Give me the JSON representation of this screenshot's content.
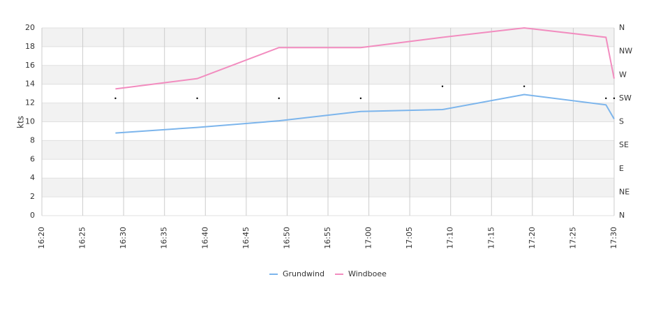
{
  "chart_data": {
    "type": "line",
    "y_label": "kts",
    "x": [
      "16:29",
      "16:39",
      "16:49",
      "16:59",
      "17:09",
      "17:19",
      "17:29",
      "17:30"
    ],
    "xlim": [
      "16:20",
      "17:30"
    ],
    "xticks": [
      "16:20",
      "16:25",
      "16:30",
      "16:35",
      "16:40",
      "16:45",
      "16:50",
      "16:55",
      "17:00",
      "17:05",
      "17:10",
      "17:15",
      "17:20",
      "17:25",
      "17:30"
    ],
    "ylim": [
      0,
      20
    ],
    "yticks": [
      0,
      2,
      4,
      6,
      8,
      10,
      12,
      14,
      16,
      18,
      20
    ],
    "y2lim": [
      0,
      360
    ],
    "y2ticks": [
      {
        "value": 0,
        "label": "N"
      },
      {
        "value": 45,
        "label": "NE"
      },
      {
        "value": 90,
        "label": "E"
      },
      {
        "value": 135,
        "label": "SE"
      },
      {
        "value": 180,
        "label": "S"
      },
      {
        "value": 225,
        "label": "SW"
      },
      {
        "value": 270,
        "label": "W"
      },
      {
        "value": 315,
        "label": "NW"
      },
      {
        "value": 360,
        "label": "N"
      }
    ],
    "alternate_bands": true,
    "grid": true,
    "series": [
      {
        "name": "Grundwind",
        "color": "#7cb5ec",
        "values": [
          8.8,
          9.4,
          10.1,
          11.1,
          11.3,
          12.9,
          11.8,
          10.3
        ]
      },
      {
        "name": "Windboee",
        "color": "#f28cbf",
        "values": [
          13.5,
          14.6,
          17.9,
          17.9,
          19.0,
          20.0,
          19.0,
          14.6
        ]
      },
      {
        "color": "#000000",
        "axis": "y2",
        "marker_only": true,
        "values": [
          225,
          225,
          225,
          225,
          248,
          248,
          225,
          225
        ]
      }
    ]
  }
}
